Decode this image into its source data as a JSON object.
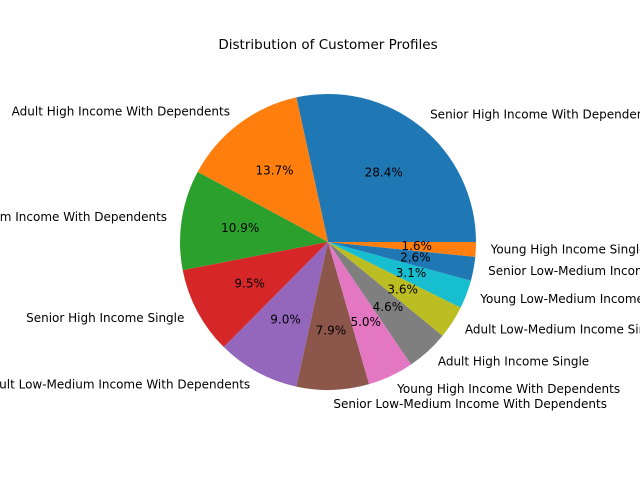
{
  "chart_data": {
    "type": "pie",
    "title": "Distribution of Customer Profiles",
    "labels": [
      "Senior High Income With Dependents",
      "Adult High Income With Dependents",
      "Young Low-Medium Income With Dependents",
      "Senior High Income Single",
      "Adult Low-Medium Income With Dependents",
      "Senior Low-Medium Income With Dependents",
      "Young High Income With Dependents",
      "Adult High Income Single",
      "Adult Low-Medium Income Single",
      "Young Low-Medium Income Single",
      "Senior Low-Medium Income Single",
      "Young High Income Single"
    ],
    "values": [
      28.4,
      13.7,
      10.9,
      9.5,
      9.0,
      7.9,
      5.0,
      4.6,
      3.6,
      3.1,
      2.6,
      1.6
    ],
    "pct_labels": [
      "28.4%",
      "13.7%",
      "10.9%",
      "9.5%",
      "9.0%",
      "7.9%",
      "5.0%",
      "4.6%",
      "3.6%",
      "3.1%",
      "2.6%",
      "1.6%"
    ],
    "colors": [
      "#1f77b4",
      "#ff7f0e",
      "#2ca02c",
      "#d62728",
      "#9467bd",
      "#8c564b",
      "#e377c2",
      "#7f7f7f",
      "#bcbd22",
      "#17becf",
      "#1f77b4",
      "#ff7f0e"
    ],
    "start_angle_deg": 0,
    "direction": "counterclockwise",
    "legend": "none"
  }
}
